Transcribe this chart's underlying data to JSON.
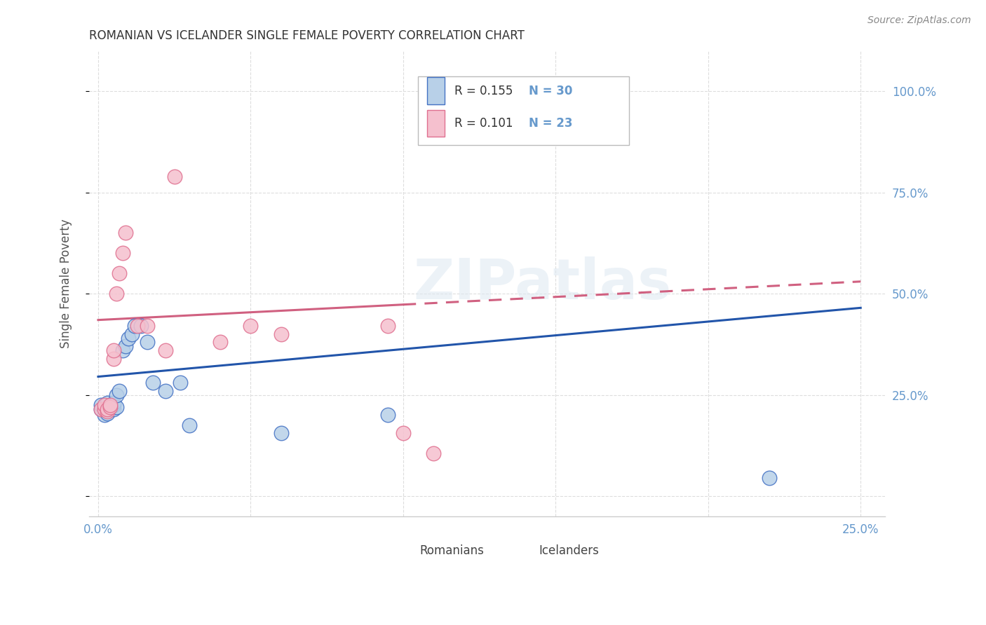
{
  "title": "ROMANIAN VS ICELANDER SINGLE FEMALE POVERTY CORRELATION CHART",
  "source": "Source: ZipAtlas.com",
  "ylabel": "Single Female Poverty",
  "xlim": [
    -0.003,
    0.258
  ],
  "ylim": [
    -0.05,
    1.1
  ],
  "blue_scatter_color": "#b8d0e8",
  "blue_edge_color": "#4472c4",
  "pink_scatter_color": "#f5c0ce",
  "pink_edge_color": "#e07090",
  "blue_line_color": "#2255aa",
  "pink_line_color": "#d06080",
  "axis_label_color": "#6699cc",
  "grid_color": "#dddddd",
  "legend_r_blue": "R = 0.155",
  "legend_n_blue": "N = 30",
  "legend_r_pink": "R = 0.101",
  "legend_n_pink": "N = 23",
  "legend_label_blue": "Romanians",
  "legend_label_pink": "Icelanders",
  "watermark_text": "ZIPatlas",
  "romanians_x": [
    0.001,
    0.001,
    0.002,
    0.002,
    0.002,
    0.003,
    0.003,
    0.003,
    0.004,
    0.004,
    0.005,
    0.005,
    0.005,
    0.006,
    0.006,
    0.007,
    0.008,
    0.009,
    0.01,
    0.011,
    0.012,
    0.014,
    0.016,
    0.018,
    0.022,
    0.027,
    0.03,
    0.06,
    0.095,
    0.22
  ],
  "romanians_y": [
    0.215,
    0.225,
    0.2,
    0.215,
    0.22,
    0.205,
    0.215,
    0.23,
    0.215,
    0.22,
    0.215,
    0.225,
    0.23,
    0.22,
    0.25,
    0.26,
    0.36,
    0.37,
    0.39,
    0.4,
    0.42,
    0.42,
    0.38,
    0.28,
    0.26,
    0.28,
    0.175,
    0.155,
    0.2,
    0.045
  ],
  "icelanders_x": [
    0.001,
    0.002,
    0.002,
    0.003,
    0.003,
    0.004,
    0.004,
    0.005,
    0.005,
    0.006,
    0.007,
    0.008,
    0.009,
    0.013,
    0.016,
    0.022,
    0.025,
    0.04,
    0.05,
    0.06,
    0.095,
    0.1,
    0.11
  ],
  "icelanders_y": [
    0.215,
    0.215,
    0.225,
    0.21,
    0.215,
    0.22,
    0.225,
    0.34,
    0.36,
    0.5,
    0.55,
    0.6,
    0.65,
    0.42,
    0.42,
    0.36,
    0.79,
    0.38,
    0.42,
    0.4,
    0.42,
    0.155,
    0.105
  ]
}
